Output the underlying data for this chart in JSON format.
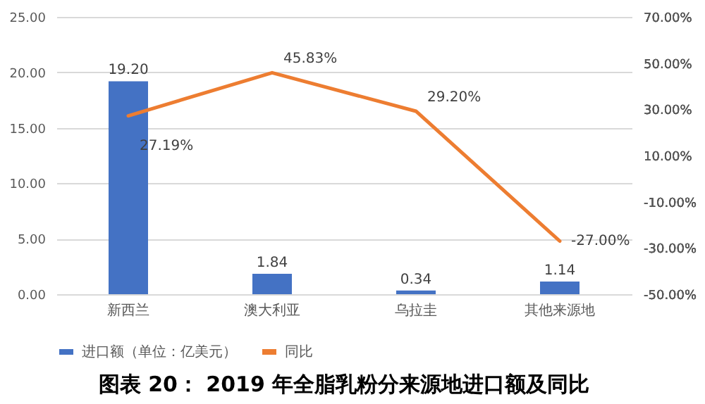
{
  "chart_data": {
    "type": "bar",
    "title": "图表 20： 2019 年全脂乳粉分来源地进口额及同比",
    "categories": [
      "新西兰",
      "澳大利亚",
      "乌拉圭",
      "其他来源地"
    ],
    "series": [
      {
        "name": "进口额（单位：亿美元）",
        "color": "#4472c4",
        "values": [
          19.2,
          1.84,
          0.34,
          1.14
        ],
        "value_labels": [
          "19.20",
          "1.84",
          "0.34",
          "1.14"
        ]
      },
      {
        "name": "同比",
        "type": "line",
        "axis": "y2",
        "color": "#ed7d31",
        "values": [
          27.19,
          45.83,
          29.2,
          -27.0
        ],
        "value_labels": [
          "27.19%",
          "45.83%",
          "29.20%",
          "-27.00%"
        ]
      }
    ],
    "ylim": [
      0,
      25
    ],
    "yticks": [
      {
        "value": 0,
        "label": "0.00"
      },
      {
        "value": 5,
        "label": "5.00"
      },
      {
        "value": 10,
        "label": "10.00"
      },
      {
        "value": 15,
        "label": "15.00"
      },
      {
        "value": 20,
        "label": "20.00"
      },
      {
        "value": 25,
        "label": "25.00"
      }
    ],
    "y2lim": [
      -50,
      70
    ],
    "y2ticks": [
      {
        "value": -50,
        "label": "-50.00%"
      },
      {
        "value": -30,
        "label": "-30.00%"
      },
      {
        "value": -10,
        "label": "-10.00%"
      },
      {
        "value": 10,
        "label": "10.00%"
      },
      {
        "value": 30,
        "label": "30.00%"
      },
      {
        "value": 50,
        "label": "50.00%"
      },
      {
        "value": 70,
        "label": "70.00%"
      }
    ],
    "grid": "y",
    "legend": "bottom",
    "marker": "none",
    "line_style": "solid"
  }
}
